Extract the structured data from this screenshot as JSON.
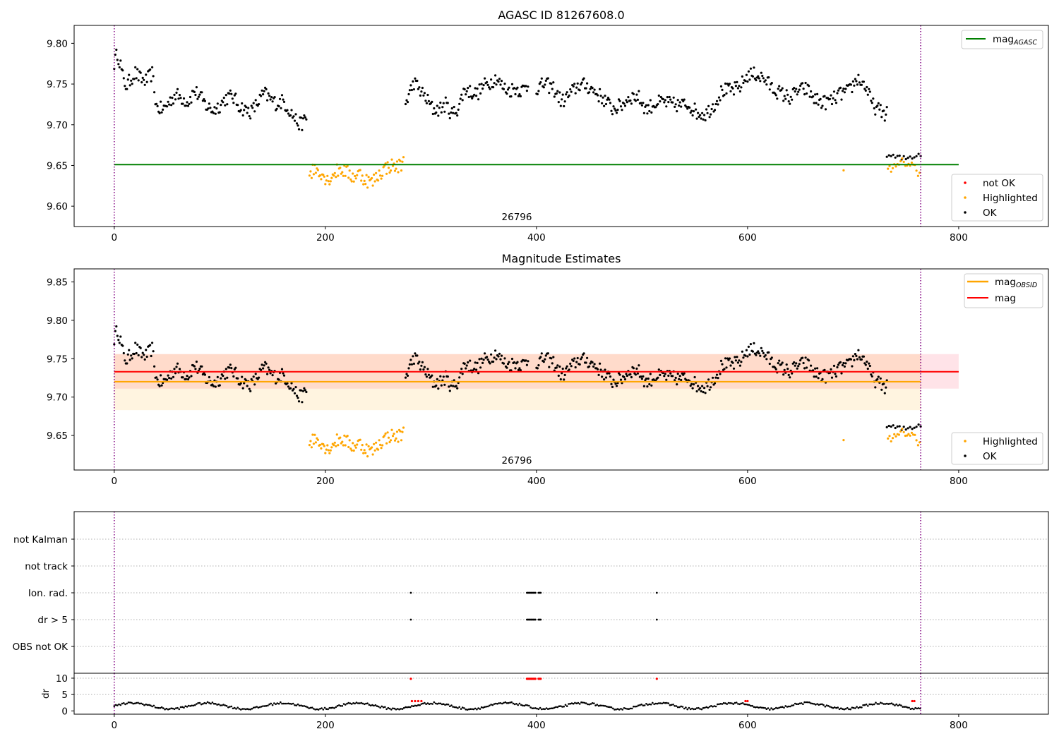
{
  "chart_data": [
    {
      "type": "scatter",
      "title": "AGASC ID 81267608.0",
      "xlim": [
        -38,
        885
      ],
      "ylim": [
        9.575,
        9.822
      ],
      "xticks": [
        "0",
        "200",
        "400",
        "600",
        "800"
      ],
      "yticks": [
        "9.60",
        "9.65",
        "9.70",
        "9.75",
        "9.80"
      ],
      "obsid_label": "26796",
      "obsid_label_x": 381,
      "obs_bounds": [
        0,
        764
      ],
      "hlines": [
        {
          "name": "mag_AGASC",
          "y": 9.651,
          "x_range": [
            0,
            800
          ],
          "color": "#008000"
        }
      ],
      "legend_lines": [
        {
          "label": "mag",
          "sub": "AGASC",
          "color": "#008000"
        }
      ],
      "legend_points": [
        {
          "label": "not OK",
          "color": "#ff0000"
        },
        {
          "label": "Highlighted",
          "color": "#ffa500"
        },
        {
          "label": "OK",
          "color": "#000000"
        }
      ],
      "series": [
        {
          "name": "OK",
          "color": "#000000",
          "segments": [
            {
              "x": [
                0,
                3,
                6,
                9,
                12,
                16,
                20,
                25,
                30,
                36,
                40,
                46,
                52,
                58,
                64,
                70,
                76,
                82,
                88,
                94,
                100,
                106,
                112,
                118,
                124,
                130,
                136,
                142,
                148,
                154,
                160,
                166,
                172,
                176,
                179,
                182
              ],
              "y": [
                9.776,
                9.788,
                9.774,
                9.752,
                9.748,
                9.757,
                9.764,
                9.756,
                9.754,
                9.763,
                9.722,
                9.718,
                9.728,
                9.737,
                9.733,
                9.728,
                9.742,
                9.733,
                9.722,
                9.718,
                9.724,
                9.733,
                9.735,
                9.724,
                9.718,
                9.716,
                9.727,
                9.739,
                9.731,
                9.726,
                9.729,
                9.718,
                9.706,
                9.7,
                9.703,
                9.708
              ],
              "jitter": 0.009,
              "step": 1
            },
            {
              "x": [
                276,
                280,
                284,
                290,
                296,
                302,
                308,
                314,
                320,
                326,
                332,
                338,
                344,
                350,
                356,
                362,
                368,
                374,
                380,
                386,
                392
              ],
              "y": [
                9.725,
                9.74,
                9.752,
                9.742,
                9.731,
                9.719,
                9.719,
                9.725,
                9.713,
                9.721,
                9.744,
                9.74,
                9.738,
                9.748,
                9.752,
                9.758,
                9.746,
                9.742,
                9.745,
                9.742,
                9.748
              ],
              "jitter": 0.009,
              "step": 1
            },
            {
              "x": [
                400,
                408,
                416,
                424,
                432,
                440,
                448,
                456,
                464,
                472,
                480,
                488,
                496,
                504,
                512,
                520,
                528,
                536,
                544,
                552,
                560,
                568,
                576,
                584,
                592,
                600,
                608,
                616,
                624,
                632,
                640,
                648,
                656,
                664,
                672,
                680,
                688,
                696,
                704,
                712,
                718,
                724,
                728,
                732
              ],
              "y": [
                9.745,
                9.75,
                9.745,
                9.728,
                9.738,
                9.749,
                9.748,
                9.74,
                9.731,
                9.72,
                9.723,
                9.734,
                9.735,
                9.719,
                9.726,
                9.728,
                9.725,
                9.724,
                9.725,
                9.715,
                9.713,
                9.724,
                9.742,
                9.742,
                9.745,
                9.761,
                9.762,
                9.756,
                9.744,
                9.738,
                9.733,
                9.742,
                9.744,
                9.731,
                9.727,
                9.73,
                9.738,
                9.741,
                9.757,
                9.747,
                9.725,
                9.718,
                9.715,
                9.713
              ],
              "jitter": 0.009,
              "step": 1
            },
            {
              "x": [
                732,
                740,
                748,
                756,
                762,
                765
              ],
              "y": [
                9.663,
                9.66,
                9.658,
                9.661,
                9.664,
                9.665
              ],
              "jitter": 0.004,
              "step": 2
            }
          ]
        },
        {
          "name": "Highlighted",
          "color": "#ffa500",
          "segments": [
            {
              "x": [
                185,
                190,
                196,
                202,
                208,
                214,
                220,
                226,
                232,
                238,
                244,
                250,
                256,
                262,
                268,
                274
              ],
              "y": [
                9.64,
                9.646,
                9.642,
                9.632,
                9.64,
                9.646,
                9.642,
                9.636,
                9.64,
                9.633,
                9.629,
                9.638,
                9.646,
                9.65,
                9.648,
                9.654
              ],
              "jitter": 0.009,
              "step": 1
            },
            {
              "x": [
                733,
                740,
                748,
                756,
                764
              ],
              "y": [
                9.65,
                9.646,
                9.655,
                9.65,
                9.64
              ],
              "jitter": 0.006,
              "step": 1.5
            },
            {
              "x": [
                691,
                692
              ],
              "y": [
                9.644,
                9.644
              ],
              "jitter": 0,
              "step": 5
            }
          ]
        }
      ]
    },
    {
      "type": "scatter",
      "title": "Magnitude Estimates",
      "xlim": [
        -38,
        885
      ],
      "ylim": [
        9.605,
        9.867
      ],
      "xticks": [
        "0",
        "200",
        "400",
        "600",
        "800"
      ],
      "yticks": [
        "9.65",
        "9.70",
        "9.75",
        "9.80",
        "9.85"
      ],
      "obsid_label": "26796",
      "obsid_label_x": 381,
      "obs_bounds": [
        0,
        764
      ],
      "bands": [
        {
          "name": "mag band",
          "x_range": [
            0,
            800
          ],
          "y_range": [
            9.711,
            9.756
          ],
          "color": "#ffc0cb",
          "opacity": 0.45
        },
        {
          "name": "mag_OBSID band",
          "x_range": [
            0,
            764
          ],
          "y_range": [
            9.683,
            9.756
          ],
          "color": "#ffa500",
          "opacity": 0.12
        }
      ],
      "hlines": [
        {
          "name": "mag_OBSID",
          "y": 9.72,
          "x_range": [
            0,
            764
          ],
          "color": "#ffa500"
        },
        {
          "name": "mag",
          "y": 9.733,
          "x_range": [
            0,
            800
          ],
          "color": "#ff0000"
        }
      ],
      "legend_lines": [
        {
          "label": "mag",
          "sub": "OBSID",
          "color": "#ffa500"
        },
        {
          "label": "mag",
          "sub": "",
          "color": "#ff0000"
        }
      ],
      "legend_points": [
        {
          "label": "Highlighted",
          "color": "#ffa500"
        },
        {
          "label": "OK",
          "color": "#000000"
        }
      ],
      "series_ref": 0
    },
    {
      "type": "scatter",
      "title": "",
      "xlim": [
        -38,
        885
      ],
      "obs_bounds": [
        0,
        764
      ],
      "flag_rows": [
        "not Kalman",
        "not track",
        "Ion. rad.",
        "dr > 5",
        "OBS not OK"
      ],
      "flags": [
        {
          "row": "Ion. rad.",
          "x": [
            281,
            391,
            392,
            393,
            394,
            395,
            396,
            397,
            398,
            399,
            402,
            403,
            404,
            514
          ]
        },
        {
          "row": "dr > 5",
          "x": [
            281,
            391,
            392,
            393,
            394,
            395,
            396,
            397,
            398,
            399,
            402,
            403,
            404,
            514
          ]
        }
      ],
      "dr": {
        "ylabel": "dr",
        "yticks": [
          "0",
          "5",
          "10"
        ],
        "ylim": [
          -1,
          11.5
        ],
        "black": {
          "x_range": [
            0,
            764
          ],
          "base": 1.5,
          "amp": 0.9
        },
        "red": [
          {
            "x": [
              281,
              391,
              392,
              393,
              394,
              395,
              396,
              397,
              398,
              399,
              402,
              403,
              404,
              514
            ],
            "y": 9.8
          },
          {
            "x": [
              282,
              285,
              288,
              291,
              598,
              600,
              756,
              758
            ],
            "y": 3.0
          }
        ]
      }
    }
  ]
}
